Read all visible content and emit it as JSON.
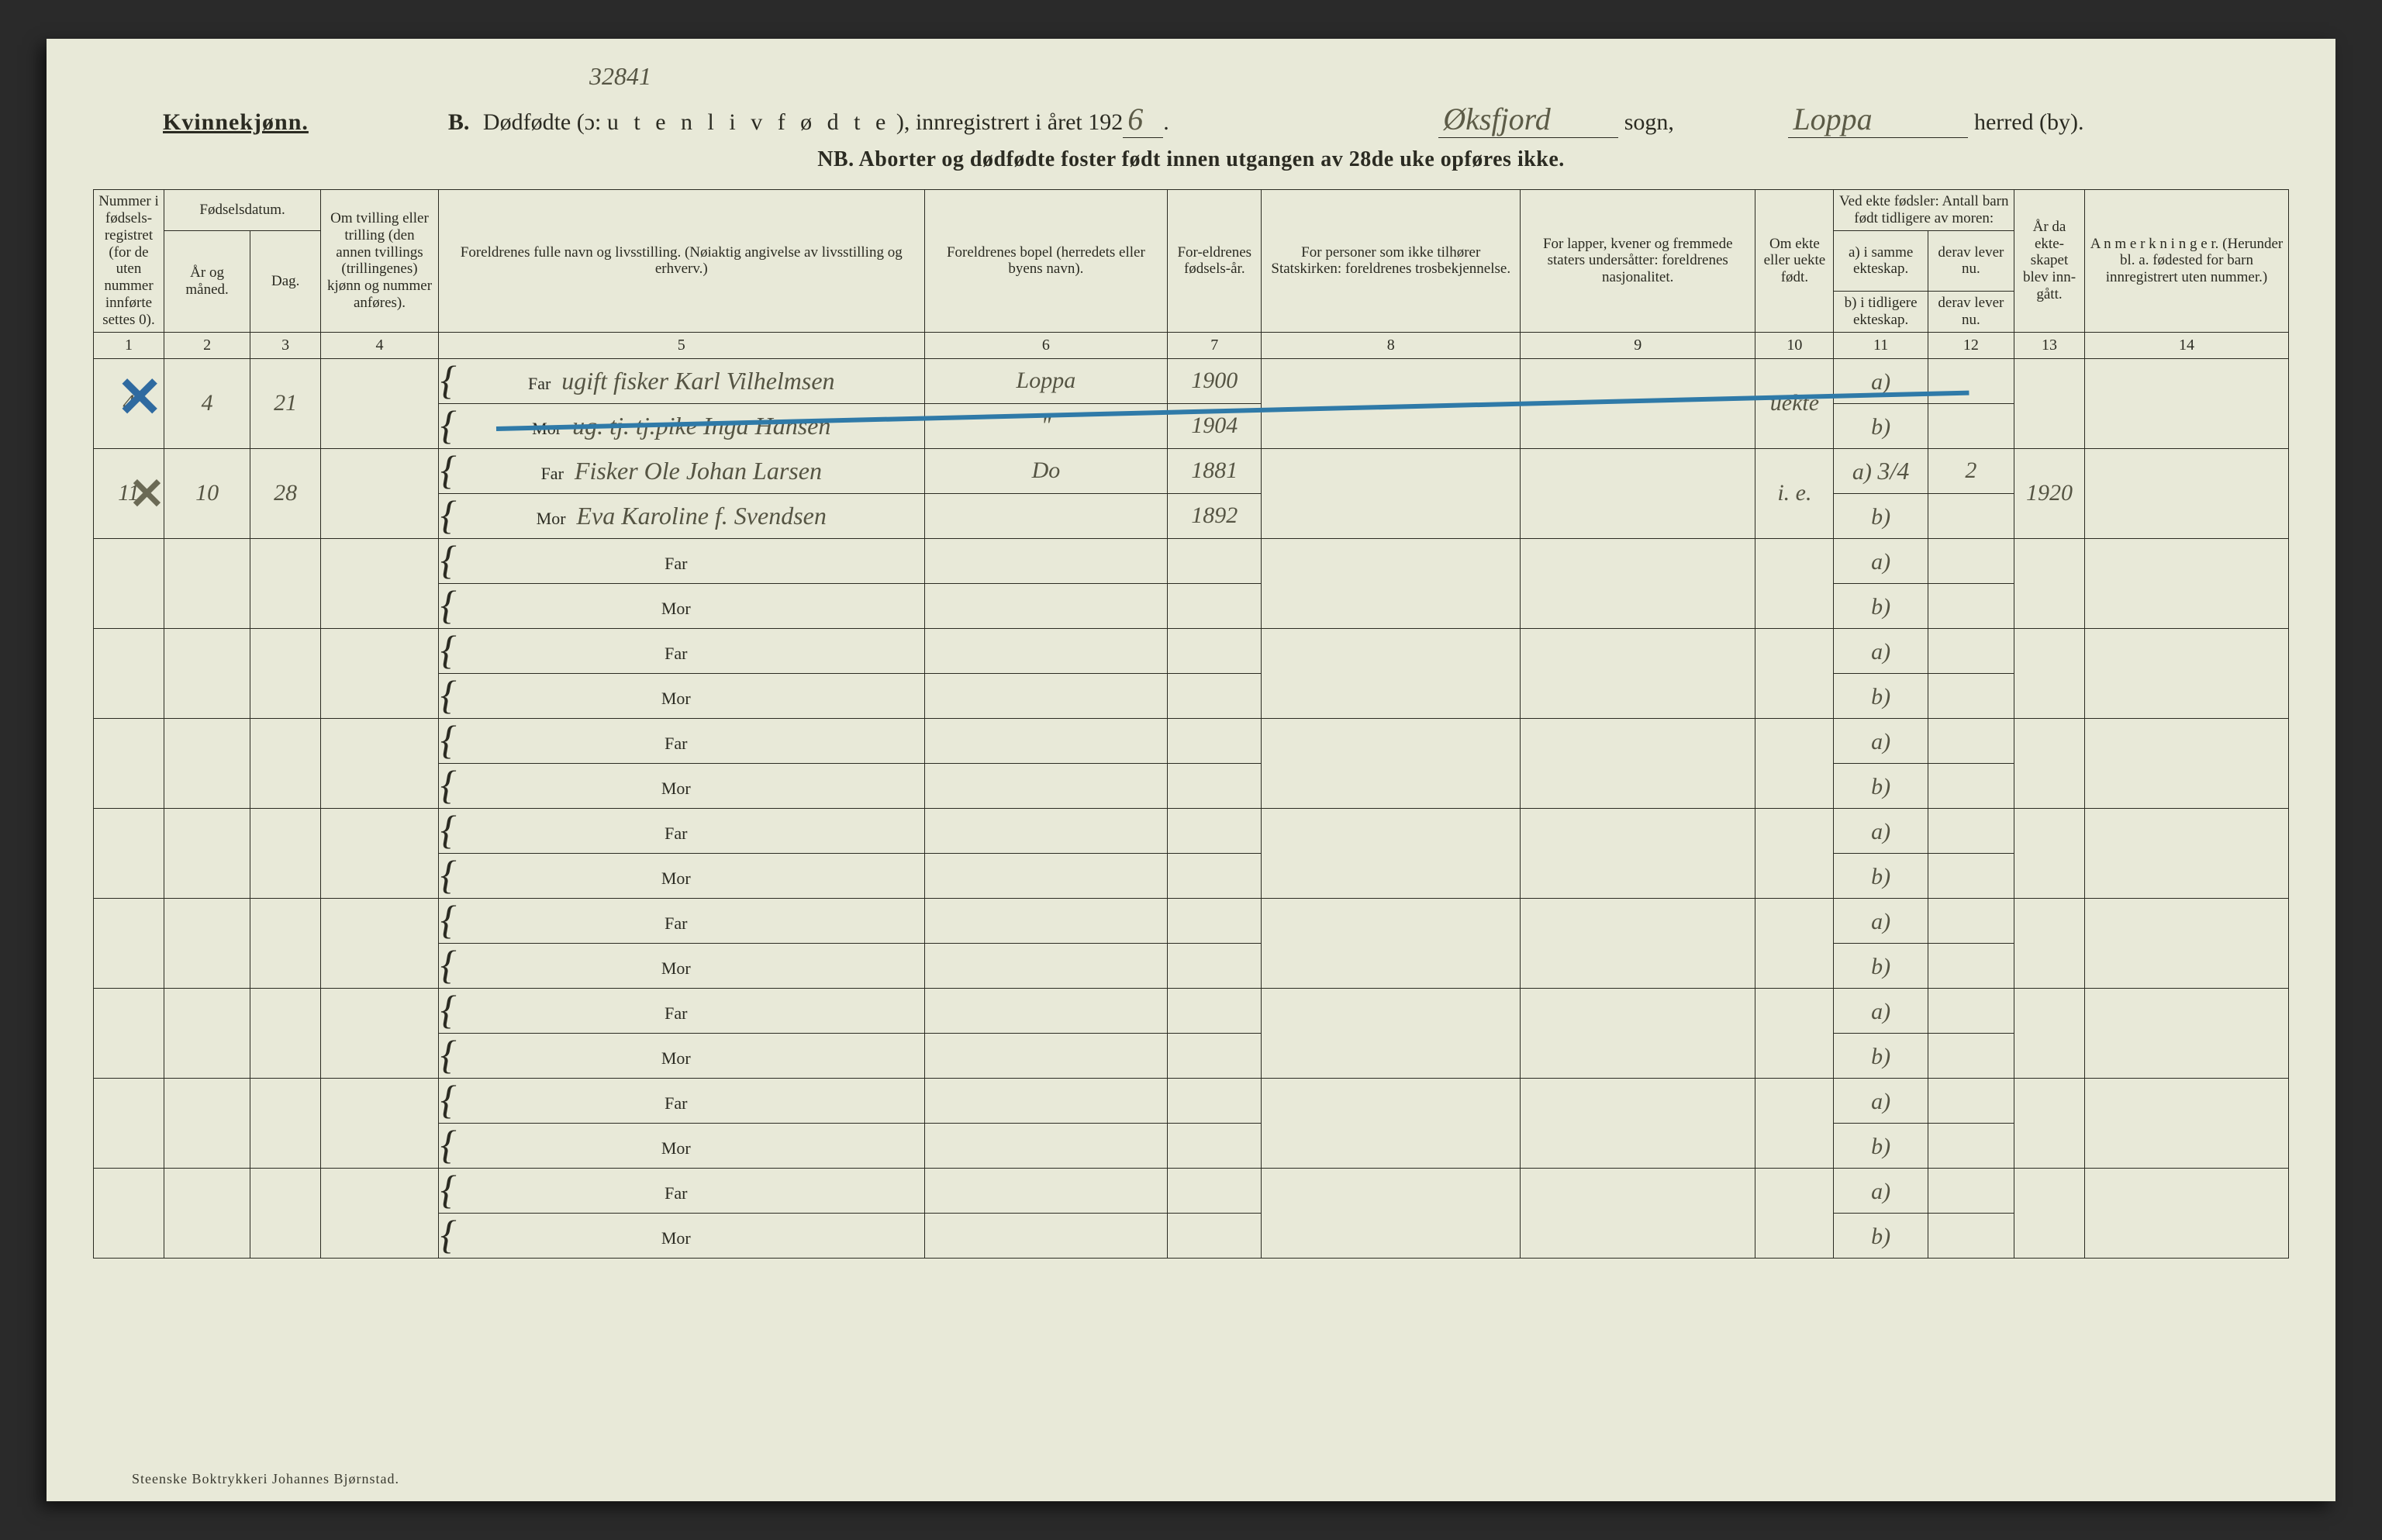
{
  "page_ref": "32841",
  "header": {
    "gender_label": "Kvinnekjønn.",
    "section_letter": "B.",
    "title_main": "Dødfødte (ɔ:",
    "title_spaced": "u t e n   l i v f ø d t e",
    "title_tail": "), innregistrert i året 192",
    "year_hand": "6",
    "year_post": ".",
    "sogn_hand": "Øksfjord",
    "sogn_label": " sogn,",
    "herred_hand": "Loppa",
    "herred_label": " herred (by).",
    "nb": "NB.  Aborter og dødfødte foster født innen utgangen av 28de uke opføres ikke."
  },
  "columns": {
    "c1": "Nummer i fødsels-registret (for de uten nummer innførte settes 0).",
    "c2_top": "Fødselsdatum.",
    "c2": "År og måned.",
    "c3": "Dag.",
    "c4": "Om tvilling eller trilling (den annen tvillings (trillingenes) kjønn og nummer anføres).",
    "c5": "Foreldrenes fulle navn og livsstilling. (Nøiaktig angivelse av livsstilling og erhverv.)",
    "c6": "Foreldrenes bopel (herredets eller byens navn).",
    "c7": "For-eldrenes fødsels-år.",
    "c8": "For personer som ikke tilhører Statskirken: foreldrenes trosbekjennelse.",
    "c9": "For lapper, kvener og fremmede staters undersåtter: foreldrenes nasjonalitet.",
    "c10": "Om ekte eller uekte født.",
    "c11_top": "Ved ekte fødsler: Antall barn født tidligere av moren:",
    "c11a": "a) i samme ekteskap.",
    "c11b": "b) i tidligere ekteskap.",
    "c12a": "derav lever nu.",
    "c12b": "derav lever nu.",
    "c13": "År da ekte-skapet blev inn-gått.",
    "c14": "A n m e r k n i n g e r. (Herunder bl. a. fødested for barn innregistrert uten nummer.)"
  },
  "colnums": [
    "1",
    "2",
    "3",
    "4",
    "5",
    "6",
    "7",
    "8",
    "9",
    "10",
    "11",
    "12",
    "13",
    "14"
  ],
  "labels": {
    "far": "Far",
    "mor": "Mor",
    "a": "a)",
    "b": "b)"
  },
  "rows": [
    {
      "reg_no": "4",
      "year_month": "4",
      "day": "21",
      "twin": "",
      "far": "ugift fisker  Karl Vilhelmsen",
      "mor": "ug. tj. tj.pike  Inga Hansen",
      "bopel_far": "Loppa",
      "bopel_mor": "\"",
      "fodselsar_far": "1900",
      "fodselsar_mor": "1904",
      "tros": "",
      "nasj": "",
      "ekte": "uekte",
      "a_val": "",
      "b_val": "",
      "derav_a": "",
      "derav_b": "",
      "ekteskap_ar": "",
      "anm": ""
    },
    {
      "reg_no": "11",
      "year_month": "10",
      "day": "28",
      "twin": "",
      "far": "Fisker Ole Johan Larsen",
      "mor": "Eva Karoline f. Svendsen",
      "bopel_far": "Do",
      "bopel_mor": "",
      "fodselsar_far": "1881",
      "fodselsar_mor": "1892",
      "tros": "",
      "nasj": "",
      "ekte": "i. e.",
      "a_val": "3/4",
      "b_val": "",
      "derav_a": "2",
      "derav_b": "",
      "ekteskap_ar": "1920",
      "anm": ""
    }
  ],
  "blank_row_count": 8,
  "marks": {
    "x1": "✕",
    "x2": "✕"
  },
  "footer": "Steenske Boktrykkeri Johannes Bjørnstad."
}
